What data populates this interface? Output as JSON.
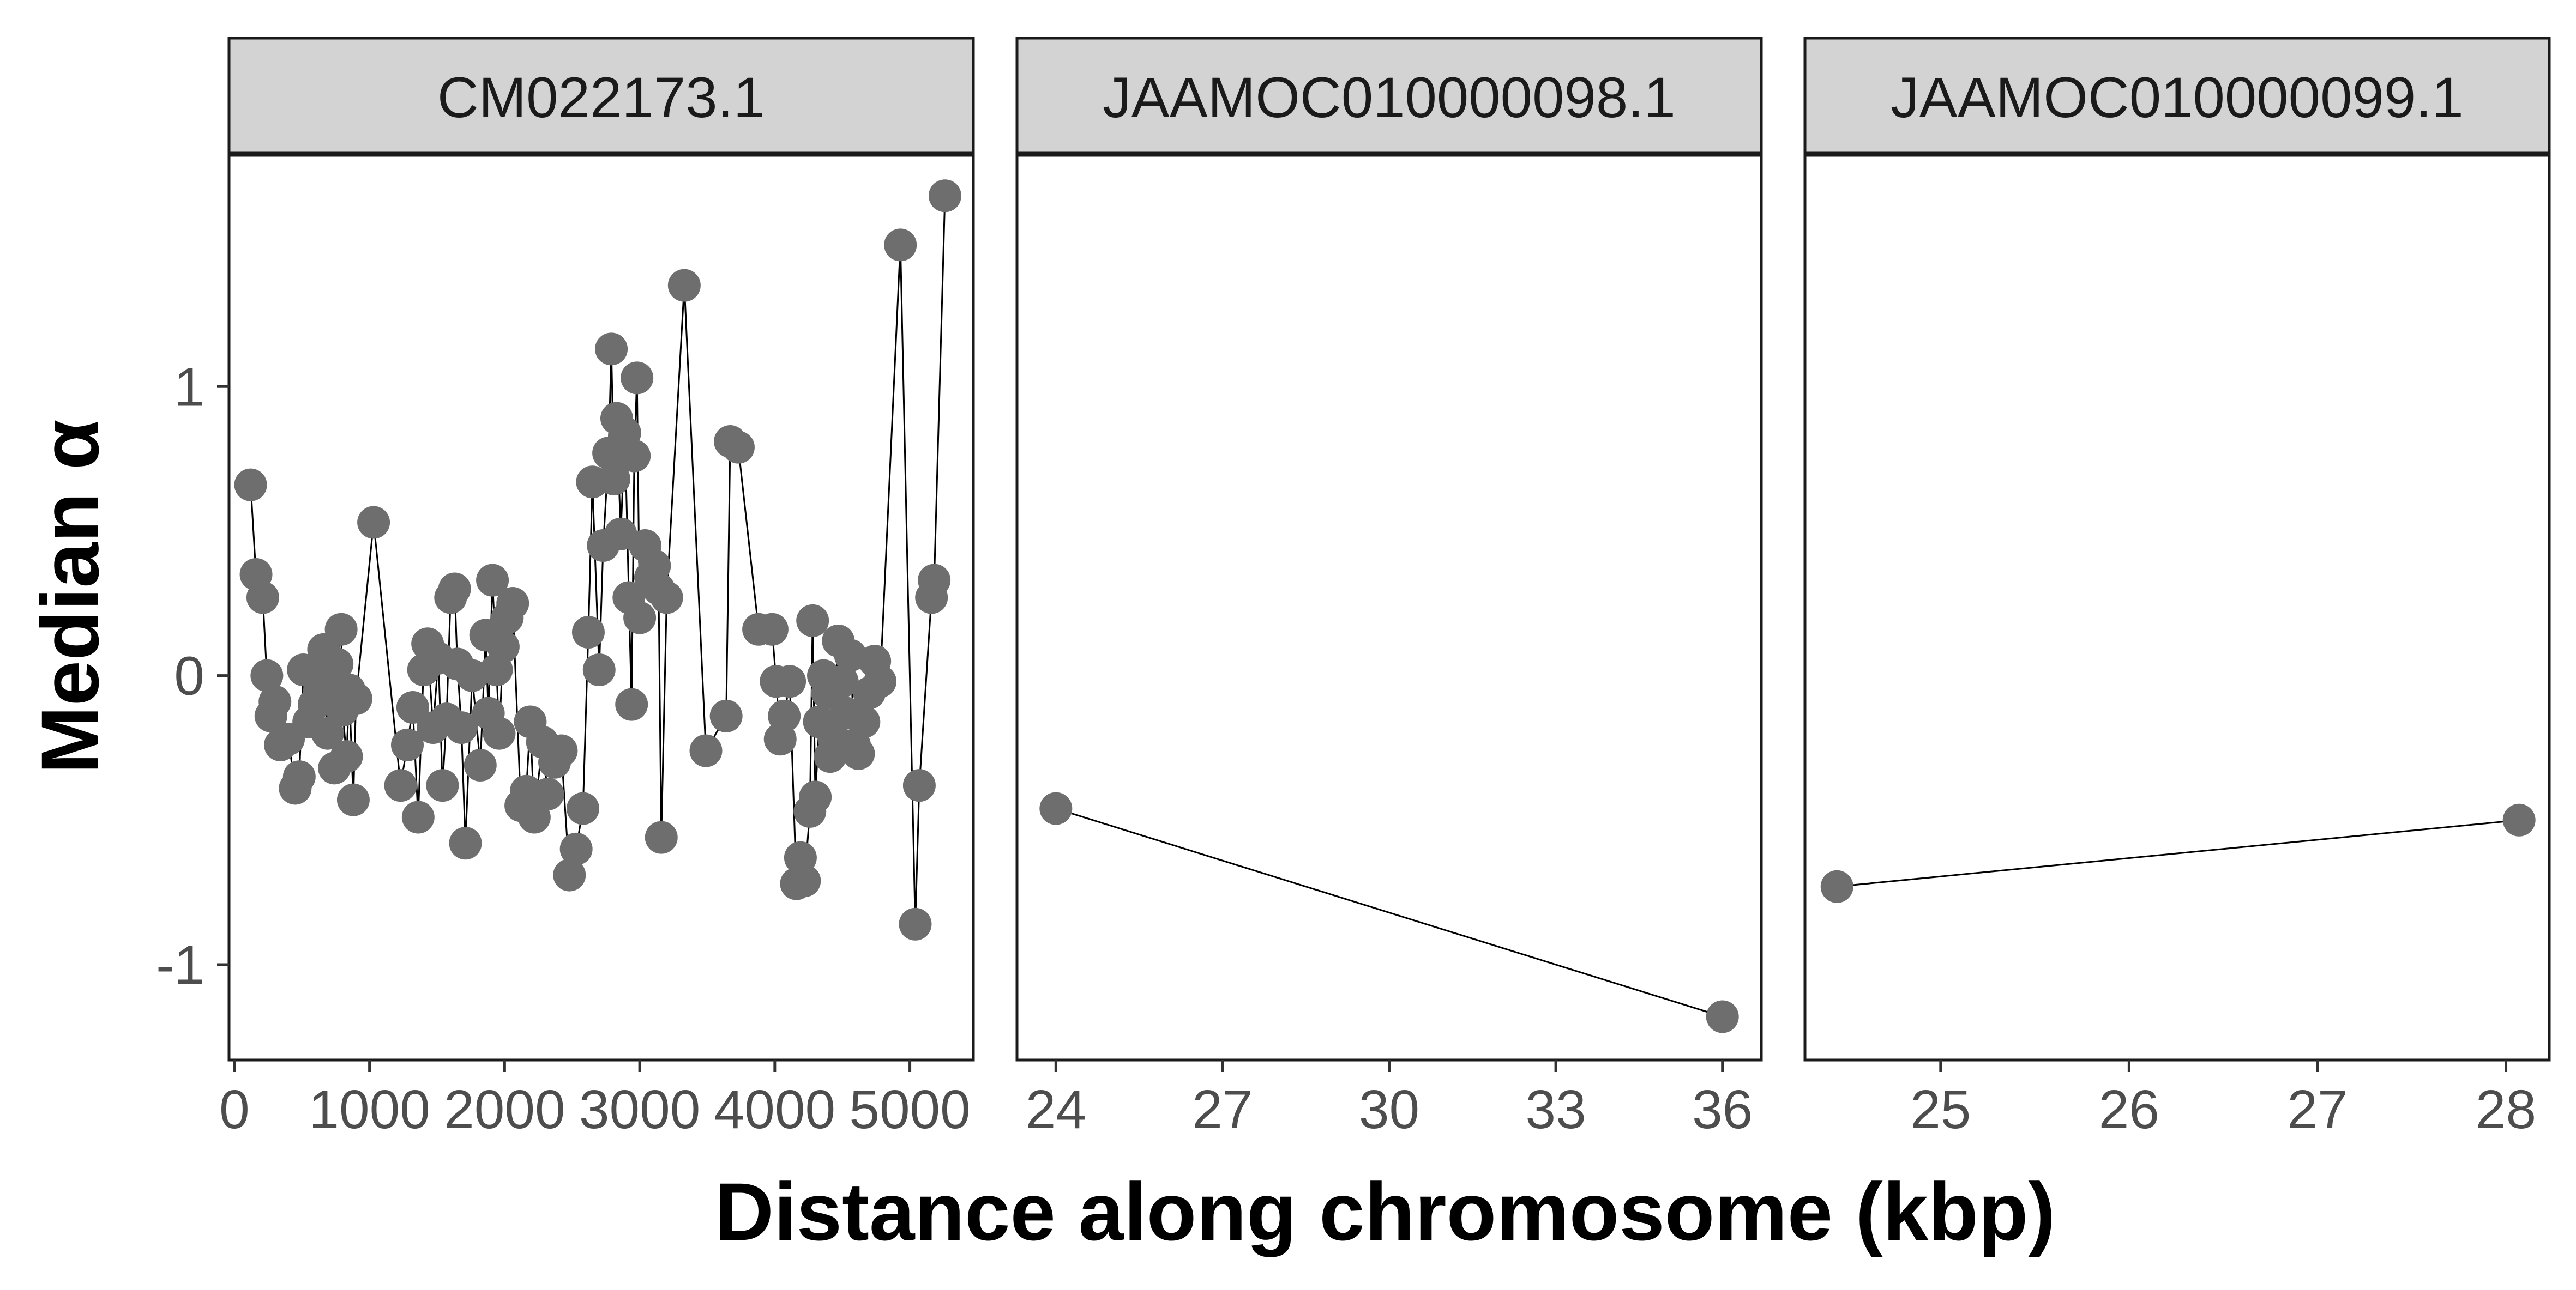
{
  "chart_data": {
    "type": "line",
    "ylabel": "Median α",
    "xlabel": "Distance along chromosome (kbp)",
    "y_ticks": [
      -1,
      0,
      1
    ],
    "ylim": [
      -1.33,
      1.8
    ],
    "point_color": "#6e6e6e",
    "line_color": "#000000",
    "strip_fill": "#d3d3d3",
    "facets": [
      {
        "label": "CM022173.1",
        "xlim": [
          -40,
          5470
        ],
        "x_ticks": [
          0,
          1000,
          2000,
          3000,
          4000,
          5000
        ],
        "x_tick_labels": [
          "0",
          "1000",
          "2000",
          "3000",
          "4000",
          "5000"
        ],
        "points": [
          [
            120,
            0.66
          ],
          [
            160,
            0.35
          ],
          [
            210,
            0.27
          ],
          [
            240,
            0.0
          ],
          [
            270,
            -0.14
          ],
          [
            300,
            -0.09
          ],
          [
            340,
            -0.24
          ],
          [
            400,
            -0.22
          ],
          [
            450,
            -0.39
          ],
          [
            480,
            -0.35
          ],
          [
            510,
            0.02
          ],
          [
            550,
            -0.16
          ],
          [
            590,
            -0.1
          ],
          [
            630,
            -0.05
          ],
          [
            660,
            0.09
          ],
          [
            690,
            -0.2
          ],
          [
            720,
            0.0
          ],
          [
            740,
            -0.32
          ],
          [
            760,
            0.04
          ],
          [
            790,
            0.16
          ],
          [
            800,
            -0.12
          ],
          [
            830,
            -0.28
          ],
          [
            850,
            -0.05
          ],
          [
            880,
            -0.43
          ],
          [
            900,
            -0.08
          ],
          [
            1030,
            0.53
          ],
          [
            1230,
            -0.38
          ],
          [
            1280,
            -0.24
          ],
          [
            1320,
            -0.11
          ],
          [
            1360,
            -0.49
          ],
          [
            1400,
            0.02
          ],
          [
            1430,
            0.11
          ],
          [
            1470,
            -0.18
          ],
          [
            1510,
            0.06
          ],
          [
            1540,
            -0.38
          ],
          [
            1570,
            -0.15
          ],
          [
            1600,
            0.27
          ],
          [
            1630,
            0.3
          ],
          [
            1650,
            0.04
          ],
          [
            1680,
            -0.18
          ],
          [
            1710,
            -0.58
          ],
          [
            1760,
            0.0
          ],
          [
            1820,
            -0.31
          ],
          [
            1860,
            0.14
          ],
          [
            1880,
            -0.13
          ],
          [
            1910,
            0.33
          ],
          [
            1940,
            0.02
          ],
          [
            1960,
            -0.2
          ],
          [
            1990,
            0.1
          ],
          [
            2020,
            0.2
          ],
          [
            2060,
            0.25
          ],
          [
            2120,
            -0.45
          ],
          [
            2160,
            -0.4
          ],
          [
            2190,
            -0.16
          ],
          [
            2220,
            -0.49
          ],
          [
            2280,
            -0.23
          ],
          [
            2320,
            -0.41
          ],
          [
            2370,
            -0.3
          ],
          [
            2420,
            -0.26
          ],
          [
            2480,
            -0.69
          ],
          [
            2530,
            -0.6
          ],
          [
            2580,
            -0.46
          ],
          [
            2620,
            0.15
          ],
          [
            2650,
            0.67
          ],
          [
            2700,
            0.02
          ],
          [
            2730,
            0.45
          ],
          [
            2770,
            0.77
          ],
          [
            2790,
            1.13
          ],
          [
            2810,
            0.68
          ],
          [
            2830,
            0.89
          ],
          [
            2860,
            0.49
          ],
          [
            2890,
            0.84
          ],
          [
            2920,
            0.27
          ],
          [
            2940,
            -0.1
          ],
          [
            2960,
            0.76
          ],
          [
            2980,
            1.03
          ],
          [
            3000,
            0.2
          ],
          [
            3040,
            0.45
          ],
          [
            3080,
            0.34
          ],
          [
            3110,
            0.38
          ],
          [
            3140,
            0.3
          ],
          [
            3160,
            -0.56
          ],
          [
            3200,
            0.27
          ],
          [
            3330,
            1.35
          ],
          [
            3490,
            -0.26
          ],
          [
            3640,
            -0.14
          ],
          [
            3670,
            0.81
          ],
          [
            3730,
            0.79
          ],
          [
            3880,
            0.16
          ],
          [
            3980,
            0.16
          ],
          [
            4010,
            -0.02
          ],
          [
            4040,
            -0.22
          ],
          [
            4070,
            -0.14
          ],
          [
            4110,
            -0.02
          ],
          [
            4160,
            -0.72
          ],
          [
            4190,
            -0.63
          ],
          [
            4220,
            -0.71
          ],
          [
            4260,
            -0.47
          ],
          [
            4280,
            0.19
          ],
          [
            4300,
            -0.42
          ],
          [
            4330,
            -0.16
          ],
          [
            4360,
            0.0
          ],
          [
            4390,
            -0.06
          ],
          [
            4410,
            -0.28
          ],
          [
            4440,
            -0.22
          ],
          [
            4470,
            0.12
          ],
          [
            4500,
            -0.02
          ],
          [
            4530,
            -0.13
          ],
          [
            4560,
            0.07
          ],
          [
            4590,
            -0.24
          ],
          [
            4620,
            -0.27
          ],
          [
            4660,
            -0.16
          ],
          [
            4700,
            -0.06
          ],
          [
            4740,
            0.05
          ],
          [
            4780,
            -0.02
          ],
          [
            4930,
            1.49
          ],
          [
            5040,
            -0.86
          ],
          [
            5070,
            -0.38
          ],
          [
            5160,
            0.27
          ],
          [
            5180,
            0.33
          ],
          [
            5260,
            1.66
          ]
        ]
      },
      {
        "label": "JAAMOC010000098.1",
        "xlim": [
          23.3,
          36.7
        ],
        "x_ticks": [
          24,
          27,
          30,
          33,
          36
        ],
        "x_tick_labels": [
          "24",
          "27",
          "30",
          "33",
          "36"
        ],
        "points": [
          [
            24.0,
            -0.46
          ],
          [
            36.0,
            -1.18
          ]
        ]
      },
      {
        "label": "JAAMOC010000099.1",
        "xlim": [
          24.28,
          28.23
        ],
        "x_ticks": [
          25,
          26,
          27,
          28
        ],
        "x_tick_labels": [
          "25",
          "26",
          "27",
          "28"
        ],
        "points": [
          [
            24.45,
            -0.73
          ],
          [
            28.07,
            -0.5
          ]
        ]
      }
    ]
  }
}
